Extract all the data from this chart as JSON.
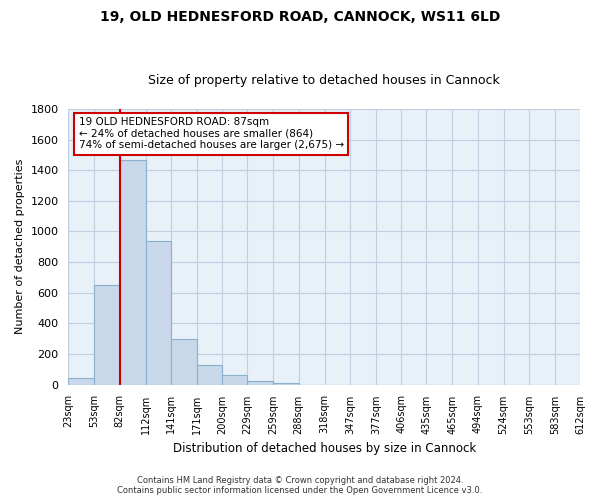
{
  "title": "19, OLD HEDNESFORD ROAD, CANNOCK, WS11 6LD",
  "subtitle": "Size of property relative to detached houses in Cannock",
  "xlabel": "Distribution of detached houses by size in Cannock",
  "ylabel": "Number of detached properties",
  "footer_line1": "Contains HM Land Registry data © Crown copyright and database right 2024.",
  "footer_line2": "Contains public sector information licensed under the Open Government Licence v3.0.",
  "annotation_line1": "19 OLD HEDNESFORD ROAD: 87sqm",
  "annotation_line2": "← 24% of detached houses are smaller (864)",
  "annotation_line3": "74% of semi-detached houses are larger (2,675) →",
  "bar_color": "#c8d8ea",
  "bar_edge_color": "#8ab0cc",
  "redline_color": "#cc0000",
  "annotation_box_edge": "#cc0000",
  "bg_color": "#e8f0f8",
  "grid_color": "#c0cfe0",
  "bins": [
    23,
    53,
    82,
    112,
    141,
    171,
    200,
    229,
    259,
    288,
    318,
    347,
    377,
    406,
    435,
    465,
    494,
    524,
    553,
    583,
    612
  ],
  "bin_labels": [
    "23sqm",
    "53sqm",
    "82sqm",
    "112sqm",
    "141sqm",
    "171sqm",
    "200sqm",
    "229sqm",
    "259sqm",
    "288sqm",
    "318sqm",
    "347sqm",
    "377sqm",
    "406sqm",
    "435sqm",
    "465sqm",
    "494sqm",
    "524sqm",
    "553sqm",
    "583sqm",
    "612sqm"
  ],
  "counts": [
    40,
    650,
    1470,
    935,
    295,
    130,
    65,
    25,
    10,
    0,
    0,
    0,
    0,
    0,
    0,
    0,
    0,
    0,
    0,
    0
  ],
  "ylim": [
    0,
    1800
  ],
  "yticks": [
    0,
    200,
    400,
    600,
    800,
    1000,
    1200,
    1400,
    1600,
    1800
  ],
  "redline_x": 82
}
